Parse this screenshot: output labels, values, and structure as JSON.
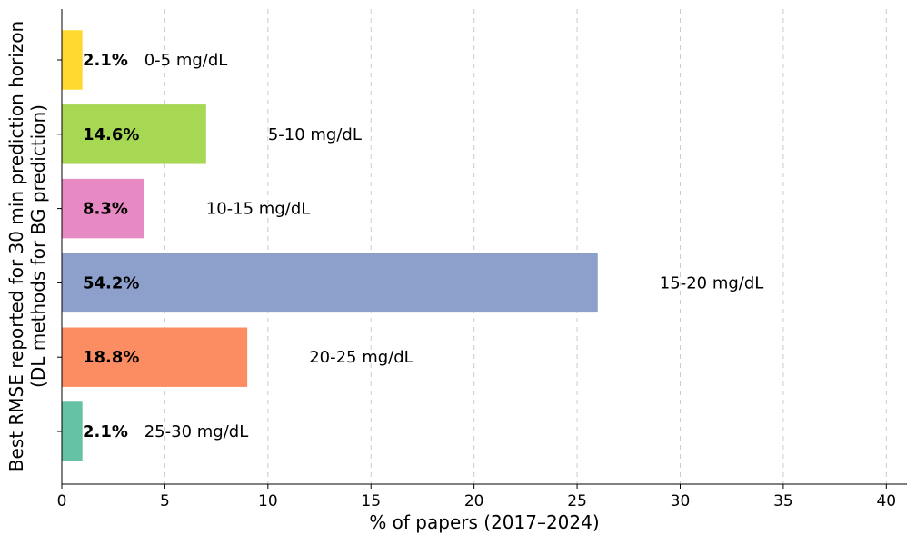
{
  "chart_data": {
    "type": "bar",
    "orientation": "horizontal",
    "categories": [
      "25-30 mg/dL",
      "20-25 mg/dL",
      "15-20 mg/dL",
      "10-15 mg/dL",
      "5-10 mg/dL",
      "0-5 mg/dL"
    ],
    "values": [
      1,
      9,
      26,
      4,
      7,
      1
    ],
    "percent_labels": [
      "2.1%",
      "18.8%",
      "54.2%",
      "8.3%",
      "14.6%",
      "2.1%"
    ],
    "colors": [
      "#66c2a5",
      "#fc8d62",
      "#8da0cb",
      "#e78ac3",
      "#a6d854",
      "#ffd92f"
    ],
    "xlabel": "% of papers (2017–2024)",
    "ylabel_line1": "Best RMSE reported for 30 min prediction horizon",
    "ylabel_line2": "(DL methods for BG prediction)",
    "xlim": [
      0,
      41
    ],
    "xticks": [
      0,
      5,
      10,
      15,
      20,
      25,
      30,
      35,
      40
    ],
    "grid": "x-dashed",
    "legend": "none"
  }
}
